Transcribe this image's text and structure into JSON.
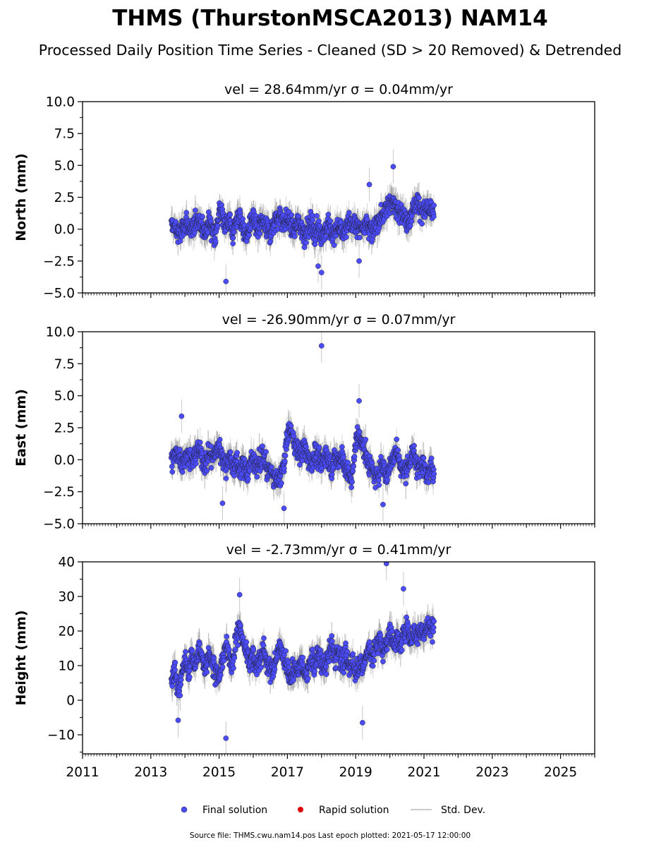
{
  "figure": {
    "title": "THMS (ThurstonMSCA2013) NAM14",
    "subtitle": "Processed Daily Position Time Series - Cleaned (SD > 20 Removed) & Detrended",
    "source_note": "Source file: THMS.cwu.nam14.pos  Last epoch plotted: 2021-05-17 12:00:00"
  },
  "legend": {
    "placement": "bottom-center",
    "items": [
      {
        "label": "Final solution",
        "color": "#4b4bff"
      },
      {
        "label": "Rapid solution",
        "color": "#dd0000"
      },
      {
        "label": "Std. Dev.",
        "color": "#cccccc"
      }
    ]
  },
  "chart_data": [
    {
      "type": "scatter",
      "title": "vel = 28.64mm/yr   σ = 0.04mm/yr",
      "ylabel": "North (mm)",
      "xlim": [
        2011,
        2026
      ],
      "ylim": [
        -5,
        10
      ],
      "yticks": [
        "10.0",
        "7.5",
        "5.0",
        "2.5",
        "0.0",
        "−2.5",
        "−5.0"
      ],
      "xticks": [],
      "series": [
        {
          "marker_color": "#4b4bff",
          "x": [
            2013.6,
            2013.7,
            2013.8,
            2013.9,
            2014.0,
            2014.1,
            2014.2,
            2014.3,
            2014.4,
            2014.5,
            2014.6,
            2014.7,
            2014.8,
            2014.9,
            2015.0,
            2015.1,
            2015.2,
            2015.3,
            2015.4,
            2015.5,
            2015.6,
            2015.7,
            2015.8,
            2015.9,
            2016.0,
            2016.1,
            2016.2,
            2016.3,
            2016.4,
            2016.5,
            2016.6,
            2016.7,
            2016.8,
            2016.9,
            2017.0,
            2017.1,
            2017.2,
            2017.3,
            2017.4,
            2017.5,
            2017.6,
            2017.7,
            2017.8,
            2017.9,
            2018.0,
            2018.1,
            2018.2,
            2018.3,
            2018.4,
            2018.5,
            2018.6,
            2018.7,
            2018.8,
            2018.9,
            2019.0,
            2019.1,
            2019.2,
            2019.3,
            2019.4,
            2019.5,
            2019.6,
            2019.7,
            2019.8,
            2019.9,
            2020.0,
            2020.1,
            2020.2,
            2020.3,
            2020.4,
            2020.5,
            2020.6,
            2020.7,
            2020.8,
            2020.9,
            2021.0,
            2021.1,
            2021.2,
            2021.3
          ],
          "y": [
            0.4,
            0.1,
            -0.4,
            -0.2,
            0.5,
            0.2,
            -0.3,
            0.6,
            0.9,
            0.2,
            -0.5,
            0.8,
            0.1,
            -0.6,
            1.5,
            1.0,
            0.3,
            0.8,
            -0.5,
            0.6,
            1.2,
            0.1,
            -0.8,
            0.4,
            0.9,
            -0.2,
            0.3,
            0.6,
            0.0,
            -0.3,
            0.5,
            0.8,
            1.1,
            0.4,
            0.9,
            0.3,
            -0.2,
            0.6,
            0.2,
            -0.4,
            0.1,
            0.5,
            -0.3,
            0.2,
            -0.5,
            -0.1,
            0.4,
            -0.6,
            -0.2,
            0.3,
            -0.4,
            0.1,
            0.6,
            0.2,
            0.5,
            -0.1,
            0.3,
            0.6,
            0.2,
            -0.3,
            0.4,
            0.9,
            1.2,
            1.5,
            2.3,
            2.0,
            1.4,
            1.8,
            1.0,
            0.6,
            1.1,
            1.7,
            2.2,
            1.6,
            1.3,
            1.8,
            1.2,
            1.5
          ]
        }
      ],
      "outliers": [
        [
          2015.2,
          -4.1
        ],
        [
          2018.0,
          -3.4
        ],
        [
          2019.4,
          3.5
        ],
        [
          2020.1,
          4.9
        ],
        [
          2017.9,
          -2.9
        ],
        [
          2019.1,
          -2.5
        ]
      ]
    },
    {
      "type": "scatter",
      "title": "vel = -26.90mm/yr   σ = 0.07mm/yr",
      "ylabel": "East (mm)",
      "xlim": [
        2011,
        2026
      ],
      "ylim": [
        -5,
        10
      ],
      "yticks": [
        "10.0",
        "7.5",
        "5.0",
        "2.5",
        "0.0",
        "−2.5",
        "−5.0"
      ],
      "xticks": [],
      "series": [
        {
          "marker_color": "#4b4bff",
          "x": [
            2013.6,
            2013.7,
            2013.8,
            2013.9,
            2014.0,
            2014.1,
            2014.2,
            2014.3,
            2014.4,
            2014.5,
            2014.6,
            2014.7,
            2014.8,
            2014.9,
            2015.0,
            2015.1,
            2015.2,
            2015.3,
            2015.4,
            2015.5,
            2015.6,
            2015.7,
            2015.8,
            2015.9,
            2016.0,
            2016.1,
            2016.2,
            2016.3,
            2016.4,
            2016.5,
            2016.6,
            2016.7,
            2016.8,
            2016.9,
            2017.0,
            2017.1,
            2017.2,
            2017.3,
            2017.4,
            2017.5,
            2017.6,
            2017.7,
            2017.8,
            2017.9,
            2018.0,
            2018.1,
            2018.2,
            2018.3,
            2018.4,
            2018.5,
            2018.6,
            2018.7,
            2018.8,
            2018.9,
            2019.0,
            2019.1,
            2019.2,
            2019.3,
            2019.4,
            2019.5,
            2019.6,
            2019.7,
            2019.8,
            2019.9,
            2020.0,
            2020.1,
            2020.2,
            2020.3,
            2020.4,
            2020.5,
            2020.6,
            2020.7,
            2020.8,
            2020.9,
            2021.0,
            2021.1,
            2021.2,
            2021.3
          ],
          "y": [
            0.0,
            0.3,
            0.6,
            -0.2,
            0.1,
            0.5,
            -0.3,
            0.4,
            0.8,
            0.2,
            -0.4,
            0.6,
            0.1,
            0.7,
            1.0,
            0.2,
            -0.5,
            0.4,
            -0.6,
            -0.2,
            -0.8,
            -0.3,
            -1.0,
            -0.4,
            0.2,
            -0.5,
            -0.1,
            0.3,
            -0.6,
            -0.9,
            -1.3,
            -1.8,
            -1.1,
            -0.5,
            2.0,
            2.3,
            1.4,
            0.8,
            0.4,
            1.0,
            0.2,
            -0.3,
            0.6,
            0.1,
            -0.4,
            0.5,
            0.0,
            -0.6,
            0.3,
            -0.2,
            0.4,
            -0.7,
            -1.2,
            -1.6,
            1.5,
            2.0,
            1.1,
            0.4,
            -0.3,
            -0.9,
            -1.6,
            -0.8,
            -0.2,
            -1.4,
            -0.5,
            0.3,
            0.8,
            -0.3,
            -1.0,
            -0.6,
            -0.1,
            0.6,
            -0.4,
            -0.8,
            -0.3,
            -1.0,
            -0.5,
            -1.2
          ]
        }
      ],
      "outliers": [
        [
          2018.0,
          8.9
        ],
        [
          2019.1,
          4.6
        ],
        [
          2013.9,
          3.4
        ],
        [
          2015.1,
          -3.4
        ],
        [
          2016.9,
          -3.8
        ],
        [
          2019.8,
          -3.5
        ]
      ]
    },
    {
      "type": "scatter",
      "title": "vel = -2.73mm/yr   σ = 0.41mm/yr",
      "ylabel": "Height (mm)",
      "xlim": [
        2011,
        2026
      ],
      "ylim": [
        -15.5,
        40
      ],
      "yticks": [
        "40",
        "30",
        "20",
        "10",
        "0",
        "−10"
      ],
      "xticks": [
        "2011",
        "2013",
        "2015",
        "2017",
        "2019",
        "2021",
        "2023",
        "2025"
      ],
      "series": [
        {
          "marker_color": "#4b4bff",
          "x": [
            2013.6,
            2013.7,
            2013.8,
            2013.9,
            2014.0,
            2014.1,
            2014.2,
            2014.3,
            2014.4,
            2014.5,
            2014.6,
            2014.7,
            2014.8,
            2014.9,
            2015.0,
            2015.1,
            2015.2,
            2015.3,
            2015.4,
            2015.5,
            2015.6,
            2015.7,
            2015.8,
            2015.9,
            2016.0,
            2016.1,
            2016.2,
            2016.3,
            2016.4,
            2016.5,
            2016.6,
            2016.7,
            2016.8,
            2016.9,
            2017.0,
            2017.1,
            2017.2,
            2017.3,
            2017.4,
            2017.5,
            2017.6,
            2017.7,
            2017.8,
            2017.9,
            2018.0,
            2018.1,
            2018.2,
            2018.3,
            2018.4,
            2018.5,
            2018.6,
            2018.7,
            2018.8,
            2018.9,
            2019.0,
            2019.1,
            2019.2,
            2019.3,
            2019.4,
            2019.5,
            2019.6,
            2019.7,
            2019.8,
            2019.9,
            2020.0,
            2020.1,
            2020.2,
            2020.3,
            2020.4,
            2020.5,
            2020.6,
            2020.7,
            2020.8,
            2020.9,
            2021.0,
            2021.1,
            2021.2,
            2021.3
          ],
          "y": [
            5,
            9,
            3,
            7,
            11,
            8,
            13,
            10,
            15,
            12,
            9,
            14,
            11,
            8,
            6,
            12,
            16,
            13,
            10,
            18,
            21,
            17,
            14,
            11,
            13,
            9,
            12,
            15,
            11,
            8,
            10,
            13,
            16,
            12,
            9,
            6,
            10,
            8,
            11,
            7,
            9,
            12,
            10,
            14,
            11,
            9,
            13,
            16,
            12,
            15,
            10,
            13,
            9,
            12,
            8,
            11,
            9,
            13,
            15,
            12,
            16,
            18,
            14,
            17,
            20,
            16,
            18,
            15,
            19,
            22,
            17,
            20,
            18,
            21,
            19,
            22,
            20,
            23
          ]
        }
      ],
      "outliers": [
        [
          2015.2,
          -11
        ],
        [
          2019.9,
          39.5
        ],
        [
          2015.6,
          30.5
        ],
        [
          2020.4,
          32.2
        ],
        [
          2013.8,
          -5.8
        ],
        [
          2019.2,
          -6.5
        ]
      ]
    }
  ]
}
